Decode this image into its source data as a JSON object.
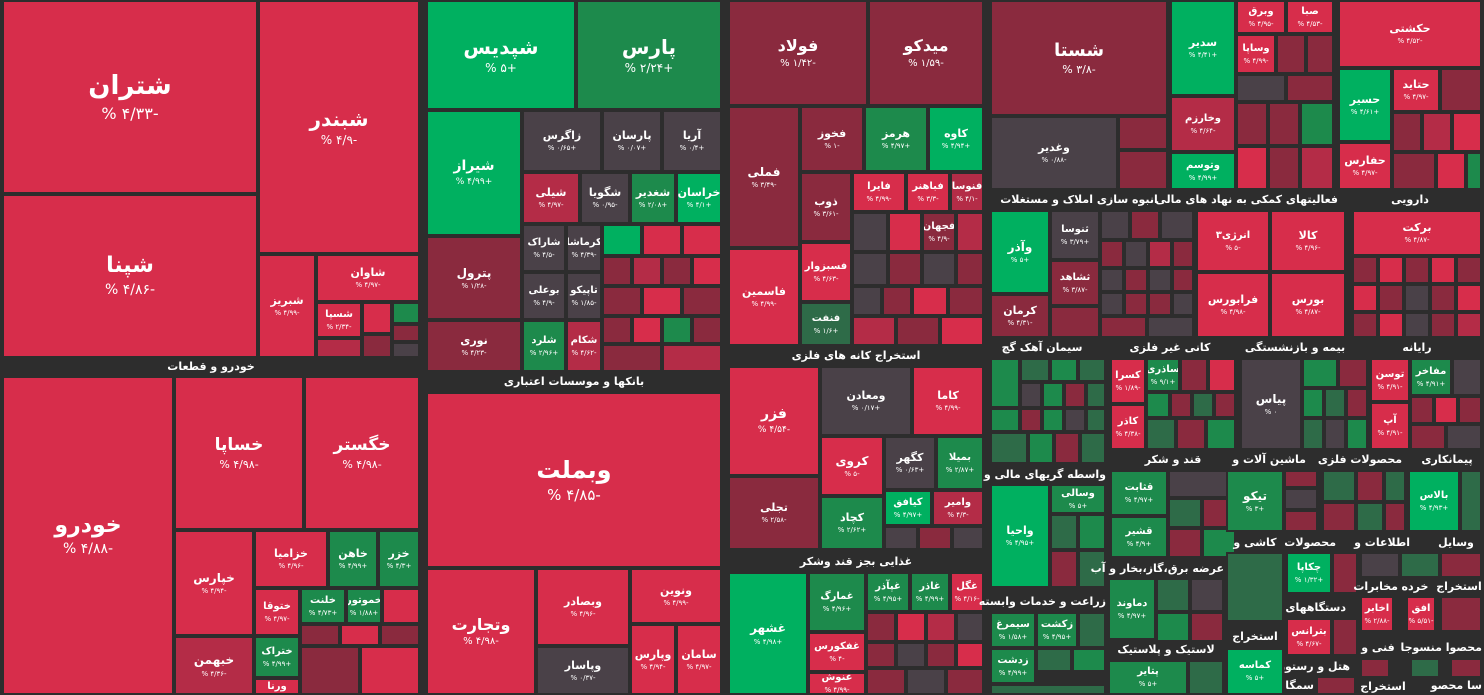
{
  "tiles": [
    {
      "id": "shetran",
      "name": "شتران",
      "pct": "-۴/۳۳ %"
    },
    {
      "id": "shebandar",
      "name": "شبندر",
      "pct": "-۴/۹ %"
    },
    {
      "id": "shepna",
      "name": "شپنا",
      "pct": "-۴/۸۶ %"
    },
    {
      "id": "shavan",
      "name": "شاوان",
      "pct": "-۴/۹۷ %"
    },
    {
      "id": "shabriz",
      "name": "شبریز",
      "pct": "-۴/۹۹ %"
    },
    {
      "id": "shesepa",
      "name": "شسپا",
      "pct": "-۲/۳۴ %"
    },
    {
      "id": "shepdis",
      "name": "شپدیس",
      "pct": "+۵ %"
    },
    {
      "id": "pars",
      "name": "پارس",
      "pct": "+۲/۲۴ %"
    },
    {
      "id": "shiraz",
      "name": "شیراز",
      "pct": "+۴/۹۹ %"
    },
    {
      "id": "zagros",
      "name": "زاگرس",
      "pct": "+۰/۶۵ %"
    },
    {
      "id": "parsan",
      "name": "پارسان",
      "pct": "+۰/۰۷ %"
    },
    {
      "id": "arya",
      "name": "آریا",
      "pct": "+۰/۴ %"
    },
    {
      "id": "sheli",
      "name": "شیلی",
      "pct": "-۴/۹۷ %"
    },
    {
      "id": "shegoya",
      "name": "شگویا",
      "pct": "-۰/۹۵ %"
    },
    {
      "id": "shaghadir",
      "name": "شغدیر",
      "pct": "+۲/۰۸ %"
    },
    {
      "id": "khorasan",
      "name": "خراسان",
      "pct": "+۴/۱ %"
    },
    {
      "id": "petrol",
      "name": "پترول",
      "pct": "-۱/۲۸ %"
    },
    {
      "id": "sharak",
      "name": "شاراک",
      "pct": "-۴/۵ %"
    },
    {
      "id": "kermasha",
      "name": "کرماشا",
      "pct": "-۴/۳۹ %"
    },
    {
      "id": "bouali",
      "name": "بوعلی",
      "pct": "-۴/۹ %"
    },
    {
      "id": "tapiko",
      "name": "تاپیکو",
      "pct": "-۱/۸۵ %"
    },
    {
      "id": "noori",
      "name": "نوری",
      "pct": "-۴/۲۳ %"
    },
    {
      "id": "sheland",
      "name": "شلرد",
      "pct": "+۲/۹۶ %"
    },
    {
      "id": "shekam",
      "name": "شکام",
      "pct": "-۴/۶۲ %"
    },
    {
      "id": "foolad",
      "name": "فولاد",
      "pct": "-۱/۴۲ %"
    },
    {
      "id": "midko",
      "name": "میدکو",
      "pct": "-۱/۵۹ %"
    },
    {
      "id": "fameli",
      "name": "فملی",
      "pct": "-۳/۴۹ %"
    },
    {
      "id": "fekhooz",
      "name": "فخوز",
      "pct": "-۱ %"
    },
    {
      "id": "hormoz",
      "name": "هرمز",
      "pct": "+۴/۹۷ %"
    },
    {
      "id": "kaveh",
      "name": "کاوه",
      "pct": "+۴/۹۴ %"
    },
    {
      "id": "fayra",
      "name": "فایرا",
      "pct": "-۴/۹۹ %"
    },
    {
      "id": "fabahonar",
      "name": "فباهنر",
      "pct": "-۳/۳ %"
    },
    {
      "id": "fevosa",
      "name": "فنوسا",
      "pct": "-۴/۱ %"
    },
    {
      "id": "zob",
      "name": "ذوب",
      "pct": "-۳/۶۱ %"
    },
    {
      "id": "fejhan",
      "name": "فجهان",
      "pct": "-۴/۹ %"
    },
    {
      "id": "fesabzevar",
      "name": "فسبزوار",
      "pct": "-۴/۶۳ %"
    },
    {
      "id": "famasmin",
      "name": "فاسمین",
      "pct": "-۴/۹۹ %"
    },
    {
      "id": "faneft",
      "name": "فنفت",
      "pct": "+۱/۶ %"
    },
    {
      "id": "shasta",
      "name": "شستا",
      "pct": "-۳/۸ %"
    },
    {
      "id": "vaghdir",
      "name": "وغدیر",
      "pct": "-۰/۸۸ %"
    },
    {
      "id": "sedir",
      "name": "سدیر",
      "pct": "+۴/۴۱ %"
    },
    {
      "id": "vebarg",
      "name": "وبرق",
      "pct": "-۴/۹۵ %"
    },
    {
      "id": "saba",
      "name": "صبا",
      "pct": "-۴/۵۳ %"
    },
    {
      "id": "vasapa",
      "name": "وساپا",
      "pct": "-۴/۹۹ %"
    },
    {
      "id": "vakharazm",
      "name": "وخارزم",
      "pct": "-۴/۶۴ %"
    },
    {
      "id": "vatusem",
      "name": "وتوسم",
      "pct": "+۴/۹۹ %"
    },
    {
      "id": "hekashti",
      "name": "حکشتی",
      "pct": "-۴/۵۲ %"
    },
    {
      "id": "hataid",
      "name": "حتاید",
      "pct": "-۴/۹۷ %"
    },
    {
      "id": "hasir",
      "name": "حسیر",
      "pct": "+۴/۶۱ %"
    },
    {
      "id": "hafars",
      "name": "حفارس",
      "pct": "-۴/۹۷ %"
    },
    {
      "id": "vaazar",
      "name": "وآذر",
      "pct": "+۵ %"
    },
    {
      "id": "sanusa",
      "name": "ثنوسا",
      "pct": "+۳/۷۹ %"
    },
    {
      "id": "sashahed",
      "name": "ثشاهد",
      "pct": "-۳/۸۷ %"
    },
    {
      "id": "kerman",
      "name": "کرمان",
      "pct": "-۴/۳۱ %"
    },
    {
      "id": "energy3",
      "name": "انرژی۳",
      "pct": "-۵ %"
    },
    {
      "id": "kala",
      "name": "کالا",
      "pct": "-۴/۹۶ %"
    },
    {
      "id": "farabors",
      "name": "فرابورس",
      "pct": "-۴/۹۸ %"
    },
    {
      "id": "bors",
      "name": "بورس",
      "pct": "-۴/۸۷ %"
    },
    {
      "id": "barekat",
      "name": "برکت",
      "pct": "-۴/۸۷ %"
    },
    {
      "id": "vebmelat",
      "name": "وبملت",
      "pct": "-۴/۸۵ %"
    },
    {
      "id": "vatejarat",
      "name": "وتجارت",
      "pct": "-۴/۹۸ %"
    },
    {
      "id": "vebsader",
      "name": "وبصادر",
      "pct": "-۴/۹۶ %"
    },
    {
      "id": "vanvin",
      "name": "ونوین",
      "pct": "-۴/۹۹ %"
    },
    {
      "id": "vepars",
      "name": "وپارس",
      "pct": "-۴/۹۴ %"
    },
    {
      "id": "saman",
      "name": "سامان",
      "pct": "-۴/۹۷ %"
    },
    {
      "id": "vepasar",
      "name": "وپاسار",
      "pct": "-۰/۳۷ %"
    },
    {
      "id": "khodro",
      "name": "خودرو",
      "pct": "-۴/۸۸ %"
    },
    {
      "id": "khesapa",
      "name": "خساپا",
      "pct": "-۴/۹۸ %"
    },
    {
      "id": "khegostar",
      "name": "خگستر",
      "pct": "-۴/۹۸ %"
    },
    {
      "id": "khepars",
      "name": "خپارس",
      "pct": "-۴/۹۴ %"
    },
    {
      "id": "khezamia",
      "name": "خزامیا",
      "pct": "-۴/۹۶ %"
    },
    {
      "id": "khahen",
      "name": "خاهن",
      "pct": "+۴/۹۹ %"
    },
    {
      "id": "khaz",
      "name": "خزر",
      "pct": "+۴/۳ %"
    },
    {
      "id": "khetoga",
      "name": "ختوقا",
      "pct": "-۴/۹۷ %"
    },
    {
      "id": "khelent",
      "name": "خلنت",
      "pct": "+۴/۷۳ %"
    },
    {
      "id": "khamotor",
      "name": "خموتور",
      "pct": "+۱/۸۸ %"
    },
    {
      "id": "khetrak",
      "name": "ختراک",
      "pct": "+۴/۹۹ %"
    },
    {
      "id": "khebahman",
      "name": "خبهمن",
      "pct": "-۴/۳۶ %"
    },
    {
      "id": "varena",
      "name": "ورنا",
      "pct": ""
    },
    {
      "id": "fazar",
      "name": "فزر",
      "pct": "-۴/۵۴ %"
    },
    {
      "id": "vamaaden",
      "name": "ومعادن",
      "pct": "+۰/۱۷ %"
    },
    {
      "id": "kama",
      "name": "کاما",
      "pct": "-۴/۹۹ %"
    },
    {
      "id": "koroy",
      "name": "کروی",
      "pct": "-۵ %"
    },
    {
      "id": "kegohar",
      "name": "کگهر",
      "pct": "+۰/۶۳ %"
    },
    {
      "id": "bemila",
      "name": "بمیلا",
      "pct": "+۲/۸۷ %"
    },
    {
      "id": "kafagh",
      "name": "کیافق",
      "pct": "+۴/۹۷ %"
    },
    {
      "id": "vamir",
      "name": "وامیر",
      "pct": "-۴/۳ %"
    },
    {
      "id": "tajli",
      "name": "تجلی",
      "pct": "-۲/۵۸ %"
    },
    {
      "id": "kechad",
      "name": "کچاد",
      "pct": "+۲/۶۲ %"
    },
    {
      "id": "ghshahr",
      "name": "غشهر",
      "pct": "+۴/۹۸ %"
    },
    {
      "id": "ghamarag",
      "name": "غمارگ",
      "pct": "+۴/۹۶ %"
    },
    {
      "id": "ghibazar",
      "name": "غپآذر",
      "pct": "+۴/۹۵ %"
    },
    {
      "id": "ghazar",
      "name": "غاذر",
      "pct": "+۴/۹۹ %"
    },
    {
      "id": "ghegol",
      "name": "غگل",
      "pct": "-۴/۱۶ %"
    },
    {
      "id": "ghefkors",
      "name": "غفکورس",
      "pct": "-۴ %"
    },
    {
      "id": "ghanosh",
      "name": "غنوش",
      "pct": "-۴/۹۹ %"
    },
    {
      "id": "vasaly",
      "name": "وسالی",
      "pct": "+۵ %"
    },
    {
      "id": "vahia",
      "name": "واحیا",
      "pct": "+۴/۹۵ %"
    },
    {
      "id": "kesra",
      "name": "کسرا",
      "pct": "-۱/۸۹ %"
    },
    {
      "id": "saderi",
      "name": "ساذری",
      "pct": "+۹/۱ %"
    },
    {
      "id": "kaser",
      "name": "کاذر",
      "pct": "-۴/۳۸ %"
    },
    {
      "id": "peyas",
      "name": "پیاس",
      "pct": "۰ %"
    },
    {
      "id": "tosan",
      "name": "توسن",
      "pct": "-۴/۹۱ %"
    },
    {
      "id": "ap",
      "name": "آپ",
      "pct": "-۴/۹۱ %"
    },
    {
      "id": "mafakher",
      "name": "مفاخر",
      "pct": "+۴/۹۱ %"
    },
    {
      "id": "balas",
      "name": "بالاس",
      "pct": "+۴/۹۳ %"
    },
    {
      "id": "ghesabit",
      "name": "قثابت",
      "pct": "+۴/۹۷ %"
    },
    {
      "id": "ghashir",
      "name": "قشیر",
      "pct": "+۴/۹ %"
    },
    {
      "id": "teyko",
      "name": "تیکو",
      "pct": "+۳ %"
    },
    {
      "id": "chaka",
      "name": "چکاپا",
      "pct": "+۱/۳۲ %"
    },
    {
      "id": "betranes",
      "name": "بترانس",
      "pct": "-۴/۶۷ %"
    },
    {
      "id": "akhaber",
      "name": "اخابر",
      "pct": "-۲/۸۸ %"
    },
    {
      "id": "afgh",
      "name": "افق",
      "pct": "-۵/۵۱ %"
    },
    {
      "id": "damavand",
      "name": "دماوند",
      "pct": "+۴/۹۷ %"
    },
    {
      "id": "zakhzat",
      "name": "زکشت",
      "pct": "+۴/۹۵ %"
    },
    {
      "id": "simorgh",
      "name": "سیمرغ",
      "pct": "+۱/۵۸ %"
    },
    {
      "id": "zandasht",
      "name": "زدشت",
      "pct": "+۴/۹۹ %"
    },
    {
      "id": "petayer",
      "name": "پتایر",
      "pct": "+۵ %"
    },
    {
      "id": "kemase",
      "name": "کماسه",
      "pct": "+۵ %"
    }
  ],
  "sectors": [
    {
      "id": "khodro-qataat",
      "label": "خودرو و قطعات"
    },
    {
      "id": "banks",
      "label": "بانکها و موسسات اعتباری"
    },
    {
      "id": "estekhraj-felezi",
      "label": "استخراج کانه های فلزی"
    },
    {
      "id": "anbooh",
      "label": "انبوه سازی املاک و مستغلات"
    },
    {
      "id": "faaliat-komaki",
      "label": "فعالیتهای کمکی به نهاد های مالی"
    },
    {
      "id": "darooyi",
      "label": "دارویی"
    },
    {
      "id": "siman",
      "label": "سیمان آهک گچ"
    },
    {
      "id": "kani-gheyr",
      "label": "کانی غیر فلزی"
    },
    {
      "id": "bime",
      "label": "بیمه و بازنشستگی"
    },
    {
      "id": "rayane",
      "label": "رایانه"
    },
    {
      "id": "ghazayi",
      "label": "غذایی بجز قند وشکر"
    },
    {
      "id": "vasete",
      "label": "واسطه گریهای مالی و"
    },
    {
      "id": "ghand",
      "label": "قند و شکر"
    },
    {
      "id": "mashin",
      "label": "ماشین آلات و"
    },
    {
      "id": "mahsulat-felezi",
      "label": "محصولات فلزی"
    },
    {
      "id": "peymankari",
      "label": "پیمانکاری"
    },
    {
      "id": "keshi",
      "label": "کاشی و"
    },
    {
      "id": "mahsulat",
      "label": "محصولات"
    },
    {
      "id": "etelaat",
      "label": "اطلاعات و"
    },
    {
      "id": "vasayel",
      "label": "وسایل"
    },
    {
      "id": "zeraat",
      "label": "زراعت و خدمات وابسته"
    },
    {
      "id": "arze-bargh",
      "label": "عرضه برق،گاز،بخار و آب"
    },
    {
      "id": "dastgahha",
      "label": "دستگاههای"
    },
    {
      "id": "mokhaberat",
      "label": "مخابرات"
    },
    {
      "id": "khorde",
      "label": "خرده"
    },
    {
      "id": "estekhraj",
      "label": "استخراج"
    },
    {
      "id": "lastik",
      "label": "لاستیک و پلاستیک"
    },
    {
      "id": "estekhraj2",
      "label": "استخراج"
    },
    {
      "id": "hotel",
      "label": "هتل و رستوران"
    },
    {
      "id": "fanni",
      "label": "فنی و"
    },
    {
      "id": "mahsoolmansoojat",
      "label": "محصوا منسوجا"
    },
    {
      "id": "sama",
      "label": "سا محصو"
    },
    {
      "id": "estekhraj3",
      "label": "استخراج"
    },
    {
      "id": "samga",
      "label": "سمگا"
    }
  ]
}
